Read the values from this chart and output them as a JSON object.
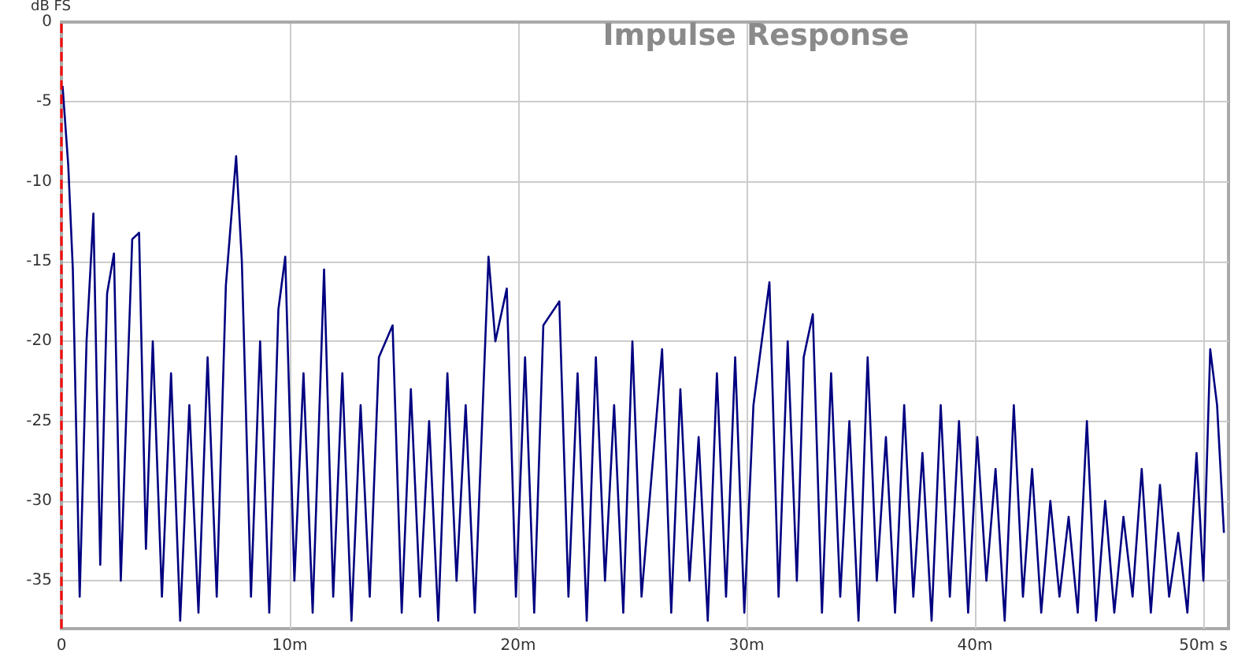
{
  "chart_data": {
    "type": "line",
    "title": "Impulse Response",
    "ylabel": "dB FS",
    "xlim": [
      0,
      51.1
    ],
    "xticks": [
      0,
      {
        "value": 10,
        "label": "10m"
      },
      {
        "value": 20,
        "label": "20m"
      },
      {
        "value": 30,
        "label": "30m"
      },
      {
        "value": 40,
        "label": "40m"
      },
      {
        "value": 50,
        "label": "50m s"
      }
    ],
    "ylim": [
      -38,
      0
    ],
    "yticks": [
      -35,
      -30,
      -25,
      -20,
      -15,
      -10,
      -5,
      0
    ],
    "grid": true,
    "marker": "none",
    "line_style": "solid",
    "ref_lines": [
      {
        "axis": "x",
        "value": 0,
        "color": "#ff0000",
        "line_style": "dashed"
      }
    ],
    "series": [
      {
        "color": "#000080",
        "x": [
          0.05,
          0.3,
          0.5,
          0.8,
          1.1,
          1.4,
          1.7,
          2.0,
          2.3,
          2.6,
          2.9,
          3.1,
          3.4,
          3.7,
          4.0,
          4.4,
          4.8,
          5.2,
          5.6,
          6.0,
          6.4,
          6.8,
          7.2,
          7.65,
          7.9,
          8.3,
          8.7,
          9.1,
          9.5,
          9.8,
          10.2,
          10.6,
          11.0,
          11.5,
          11.9,
          12.3,
          12.7,
          13.1,
          13.5,
          13.9,
          14.5,
          14.9,
          15.3,
          15.7,
          16.1,
          16.5,
          16.9,
          17.3,
          17.7,
          18.1,
          18.7,
          19.0,
          19.5,
          19.9,
          20.3,
          20.7,
          21.1,
          21.8,
          22.2,
          22.6,
          23.0,
          23.4,
          23.8,
          24.2,
          24.6,
          25.0,
          25.4,
          26.3,
          26.7,
          27.1,
          27.5,
          27.9,
          28.3,
          28.7,
          29.1,
          29.5,
          29.9,
          30.3,
          31.0,
          31.4,
          31.8,
          32.2,
          32.5,
          32.9,
          33.3,
          33.7,
          34.1,
          34.5,
          34.9,
          35.3,
          35.7,
          36.1,
          36.5,
          36.9,
          37.3,
          37.7,
          38.1,
          38.5,
          38.9,
          39.3,
          39.7,
          40.1,
          40.5,
          40.9,
          41.3,
          41.7,
          42.1,
          42.5,
          42.9,
          43.3,
          43.7,
          44.1,
          44.5,
          44.9,
          45.3,
          45.7,
          46.1,
          46.5,
          46.9,
          47.3,
          47.7,
          48.1,
          48.5,
          48.9,
          49.3,
          49.7,
          50.0,
          50.3,
          50.6,
          50.9
        ],
        "values": [
          -4,
          -9,
          -15.5,
          -36,
          -20,
          -12,
          -34,
          -17,
          -14.5,
          -35,
          -22,
          -13.6,
          -13.2,
          -33,
          -20,
          -36,
          -22,
          -37.5,
          -24,
          -37,
          -21,
          -36,
          -16.5,
          -8.4,
          -15,
          -36,
          -20,
          -37,
          -18,
          -14.7,
          -35,
          -22,
          -37,
          -15.5,
          -36,
          -22,
          -37.5,
          -24,
          -36,
          -21,
          -19,
          -37,
          -23,
          -36,
          -25,
          -37.5,
          -22,
          -35,
          -24,
          -37,
          -14.7,
          -20,
          -16.7,
          -36,
          -21,
          -37,
          -19,
          -17.5,
          -36,
          -22,
          -37.5,
          -21,
          -35,
          -24,
          -37,
          -20,
          -36,
          -20.5,
          -37,
          -23,
          -35,
          -26,
          -37.5,
          -22,
          -36,
          -21,
          -37,
          -24,
          -16.3,
          -36,
          -20,
          -35,
          -21,
          -18.3,
          -37,
          -22,
          -36,
          -25,
          -37.5,
          -21,
          -35,
          -26,
          -37,
          -24,
          -36,
          -27,
          -37.5,
          -24,
          -36,
          -25,
          -37,
          -26,
          -35,
          -28,
          -37.5,
          -24,
          -36,
          -28,
          -37,
          -30,
          -36,
          -31,
          -37,
          -25,
          -37.5,
          -30,
          -37,
          -31,
          -36,
          -28,
          -37,
          -29,
          -36,
          -32,
          -37,
          -27,
          -35,
          -20.5,
          -24,
          -32
        ]
      }
    ]
  }
}
